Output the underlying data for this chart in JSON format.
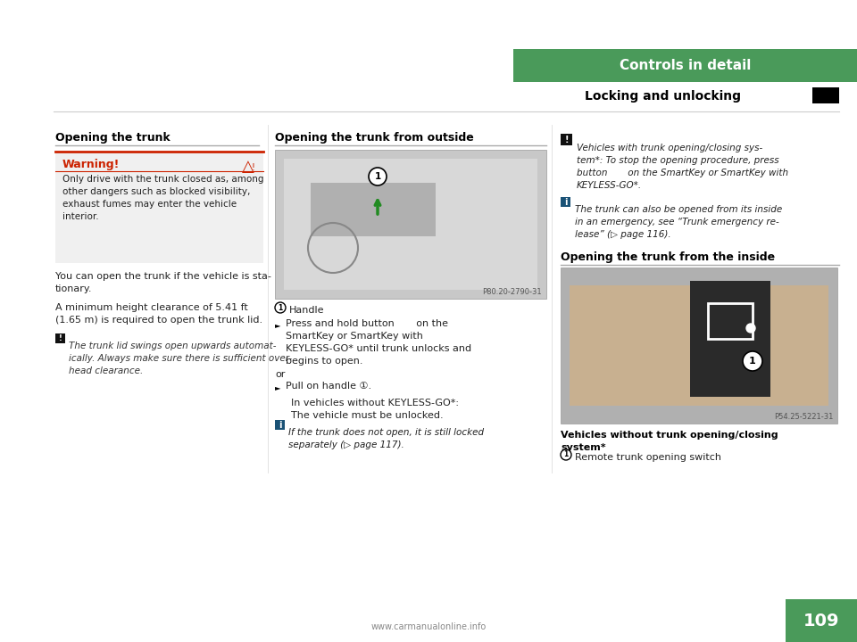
{
  "bg_color": "#ffffff",
  "green_color": "#4a9a5a",
  "page_number": "109",
  "chapter_title": "Controls in detail",
  "section_title": "Locking and unlocking",
  "left_section_title": "Opening the trunk",
  "middle_section_title": "Opening the trunk from outside",
  "right_section_title": "Opening the trunk from the inside",
  "warning_title": "Warning!",
  "warning_text": "Only drive with the trunk closed as, among\nother dangers such as blocked visibility,\nexhaust fumes may enter the vehicle\ninterior.",
  "body_text1": "You can open the trunk if the vehicle is sta-\ntionary.",
  "body_text2": "A minimum height clearance of 5.41 ft\n(1.65 m) is required to open the trunk lid.",
  "warning_note": "The trunk lid swings open upwards automat-\nically. Always make sure there is sufficient over-\nhead clearance.",
  "handle_label": "Handle",
  "press_text": "Press and hold button       on the\nSmartKey or SmartKey with\nKEYLESS-GO* until trunk unlocks and\nbegins to open.",
  "or_text": "or",
  "pull_text": "Pull on handle ①.",
  "in_vehicles_text": "In vehicles without KEYLESS-GO*:\nThe vehicle must be unlocked.",
  "info_text_middle": "If the trunk does not open, it is still locked\nseparately (▷ page 117).",
  "info_text_right1": "Vehicles with trunk opening/closing sys-\ntem*: To stop the opening procedure, press\nbutton       on the SmartKey or SmartKey with\nKEYLESS-GO*.",
  "info_text_right2": "The trunk can also be opened from its inside\nin an emergency, see “Trunk emergency re-\nlease” (▷ page 116).",
  "vehicles_without_label": "Vehicles without trunk opening/closing\nsystem*",
  "remote_label": "Remote trunk opening switch",
  "photo_ref_middle": "P80.20-2790-31",
  "photo_ref_right": "P54.25-5221-31",
  "footer_url": "www.carmanualonline.info"
}
